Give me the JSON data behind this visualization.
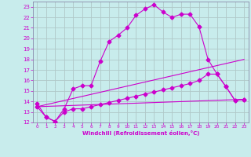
{
  "xlabel": "Windchill (Refroidissement éolien,°C)",
  "bg_color": "#c8ecec",
  "grid_color": "#b0c8c8",
  "line_color": "#cc00cc",
  "spine_color": "#8888aa",
  "xlim": [
    -0.5,
    23.5
  ],
  "ylim": [
    12,
    23.5
  ],
  "yticks": [
    12,
    13,
    14,
    15,
    16,
    17,
    18,
    19,
    20,
    21,
    22,
    23
  ],
  "xticks": [
    0,
    1,
    2,
    3,
    4,
    5,
    6,
    7,
    8,
    9,
    10,
    11,
    12,
    13,
    14,
    15,
    16,
    17,
    18,
    19,
    20,
    21,
    22,
    23
  ],
  "curve1_x": [
    0,
    1,
    2,
    3,
    4,
    5,
    6,
    7,
    8,
    9,
    10,
    11,
    12,
    13,
    14,
    15,
    16,
    17,
    18,
    19,
    20,
    21,
    22,
    23
  ],
  "curve1_y": [
    13.8,
    12.5,
    12.1,
    13.3,
    15.2,
    15.5,
    15.5,
    17.8,
    19.7,
    20.3,
    21.0,
    22.2,
    22.8,
    23.2,
    22.5,
    22.0,
    22.3,
    22.3,
    21.1,
    18.0,
    16.6,
    15.4,
    14.1,
    14.2
  ],
  "curve2_x": [
    0,
    1,
    2,
    3,
    4,
    5,
    6,
    7,
    8,
    9,
    10,
    11,
    12,
    13,
    14,
    15,
    16,
    17,
    18,
    19,
    20,
    21,
    22,
    23
  ],
  "curve2_y": [
    13.5,
    12.5,
    12.1,
    13.0,
    13.3,
    13.3,
    13.5,
    13.7,
    13.9,
    14.1,
    14.3,
    14.5,
    14.7,
    14.9,
    15.1,
    15.3,
    15.5,
    15.7,
    16.0,
    16.6,
    16.6,
    15.4,
    14.1,
    14.2
  ],
  "line1_x": [
    0,
    23
  ],
  "line1_y": [
    13.5,
    14.2
  ],
  "line2_x": [
    0,
    23
  ],
  "line2_y": [
    13.5,
    18.0
  ]
}
